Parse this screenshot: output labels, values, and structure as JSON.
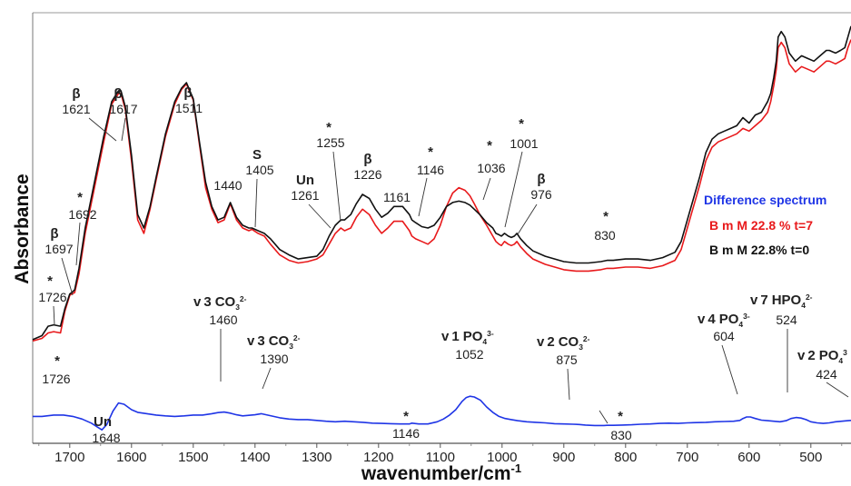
{
  "chart_data": {
    "type": "line",
    "xlabel": "wavenumber/cm",
    "xlabel_sup": "-1",
    "ylabel": "Absorbance",
    "xlim": [
      1760,
      435
    ],
    "x_reversed": true,
    "x_ticks": [
      1700,
      1600,
      1500,
      1400,
      1300,
      1200,
      1100,
      1000,
      900,
      800,
      700,
      600,
      500
    ],
    "y_ticks": false,
    "grid": false,
    "legend_position": "right",
    "legend": [
      {
        "label": "Difference spectrum",
        "color": "#1f35e6"
      },
      {
        "label": "B m M 22.8 % t=7",
        "color": "#e8191b"
      },
      {
        "label": "B m M 22.8% t=0",
        "color": "#111111"
      }
    ],
    "series": [
      {
        "name": "B m M 22.8% t=0",
        "color": "#111111",
        "x": [
          1760,
          1745,
          1735,
          1726,
          1715,
          1708,
          1700,
          1697,
          1692,
          1685,
          1675,
          1660,
          1645,
          1632,
          1621,
          1617,
          1610,
          1600,
          1590,
          1580,
          1570,
          1560,
          1545,
          1530,
          1519,
          1511,
          1500,
          1490,
          1480,
          1470,
          1460,
          1450,
          1440,
          1430,
          1420,
          1410,
          1405,
          1395,
          1385,
          1375,
          1360,
          1345,
          1330,
          1315,
          1300,
          1290,
          1280,
          1270,
          1261,
          1255,
          1245,
          1236,
          1226,
          1215,
          1205,
          1195,
          1185,
          1175,
          1161,
          1150,
          1146,
          1140,
          1130,
          1120,
          1110,
          1100,
          1090,
          1080,
          1070,
          1060,
          1052,
          1045,
          1036,
          1025,
          1015,
          1010,
          1005,
          1001,
          996,
          990,
          985,
          980,
          976,
          970,
          960,
          950,
          930,
          900,
          880,
          860,
          840,
          830,
          820,
          800,
          780,
          760,
          740,
          720,
          710,
          700,
          690,
          680,
          670,
          660,
          650,
          640,
          630,
          620,
          610,
          600,
          590,
          580,
          570,
          565,
          560,
          556,
          553,
          548,
          542,
          535,
          525,
          515,
          505,
          495,
          485,
          475,
          470,
          465,
          460,
          452,
          445,
          440,
          435
        ],
        "y": [
          0.035,
          0.05,
          0.085,
          0.09,
          0.085,
          0.15,
          0.205,
          0.21,
          0.22,
          0.3,
          0.45,
          0.62,
          0.79,
          0.92,
          0.96,
          0.96,
          0.9,
          0.72,
          0.5,
          0.45,
          0.53,
          0.64,
          0.8,
          0.92,
          0.97,
          0.99,
          0.93,
          0.77,
          0.62,
          0.53,
          0.48,
          0.49,
          0.545,
          0.49,
          0.46,
          0.45,
          0.45,
          0.44,
          0.43,
          0.41,
          0.37,
          0.35,
          0.335,
          0.34,
          0.345,
          0.37,
          0.42,
          0.46,
          0.48,
          0.48,
          0.5,
          0.54,
          0.575,
          0.56,
          0.52,
          0.49,
          0.505,
          0.53,
          0.53,
          0.5,
          0.48,
          0.47,
          0.455,
          0.45,
          0.46,
          0.49,
          0.53,
          0.545,
          0.55,
          0.545,
          0.535,
          0.52,
          0.5,
          0.47,
          0.45,
          0.43,
          0.425,
          0.42,
          0.43,
          0.42,
          0.415,
          0.42,
          0.43,
          0.41,
          0.385,
          0.365,
          0.345,
          0.325,
          0.32,
          0.32,
          0.325,
          0.33,
          0.33,
          0.335,
          0.335,
          0.33,
          0.34,
          0.36,
          0.4,
          0.48,
          0.56,
          0.64,
          0.73,
          0.78,
          0.8,
          0.81,
          0.82,
          0.83,
          0.86,
          0.84,
          0.87,
          0.88,
          0.92,
          0.95,
          1.01,
          1.07,
          1.16,
          1.18,
          1.16,
          1.1,
          1.07,
          1.09,
          1.08,
          1.07,
          1.09,
          1.11,
          1.11,
          1.105,
          1.1,
          1.11,
          1.12,
          1.16,
          1.2
        ]
      },
      {
        "name": "B m M 22.8 % t=7",
        "color": "#e8191b",
        "x": [
          1760,
          1745,
          1735,
          1726,
          1715,
          1708,
          1700,
          1697,
          1692,
          1685,
          1675,
          1660,
          1645,
          1632,
          1621,
          1617,
          1610,
          1600,
          1590,
          1580,
          1570,
          1560,
          1545,
          1530,
          1519,
          1511,
          1500,
          1490,
          1480,
          1470,
          1460,
          1450,
          1440,
          1430,
          1420,
          1410,
          1405,
          1395,
          1385,
          1375,
          1360,
          1345,
          1330,
          1315,
          1300,
          1290,
          1280,
          1270,
          1261,
          1255,
          1245,
          1236,
          1226,
          1215,
          1205,
          1195,
          1185,
          1175,
          1161,
          1150,
          1146,
          1140,
          1130,
          1120,
          1110,
          1100,
          1090,
          1080,
          1070,
          1060,
          1052,
          1045,
          1036,
          1025,
          1015,
          1010,
          1005,
          1001,
          996,
          990,
          985,
          980,
          976,
          970,
          960,
          950,
          930,
          900,
          880,
          860,
          840,
          830,
          820,
          800,
          780,
          760,
          740,
          720,
          710,
          700,
          690,
          680,
          670,
          660,
          650,
          640,
          630,
          620,
          610,
          600,
          590,
          580,
          570,
          565,
          560,
          556,
          553,
          548,
          542,
          535,
          525,
          515,
          505,
          495,
          485,
          475,
          470,
          465,
          460,
          452,
          445,
          440,
          435
        ],
        "y": [
          0.03,
          0.04,
          0.06,
          0.065,
          0.06,
          0.14,
          0.2,
          0.205,
          0.21,
          0.28,
          0.43,
          0.6,
          0.77,
          0.91,
          0.95,
          0.95,
          0.89,
          0.7,
          0.48,
          0.43,
          0.52,
          0.63,
          0.79,
          0.91,
          0.965,
          0.985,
          0.925,
          0.76,
          0.6,
          0.52,
          0.47,
          0.48,
          0.54,
          0.48,
          0.45,
          0.44,
          0.445,
          0.43,
          0.42,
          0.39,
          0.35,
          0.33,
          0.32,
          0.325,
          0.335,
          0.35,
          0.39,
          0.43,
          0.45,
          0.44,
          0.45,
          0.49,
          0.52,
          0.5,
          0.46,
          0.43,
          0.45,
          0.475,
          0.475,
          0.44,
          0.42,
          0.41,
          0.4,
          0.39,
          0.41,
          0.46,
          0.53,
          0.58,
          0.6,
          0.59,
          0.57,
          0.54,
          0.5,
          0.46,
          0.42,
          0.4,
          0.39,
          0.385,
          0.4,
          0.39,
          0.385,
          0.39,
          0.4,
          0.38,
          0.355,
          0.335,
          0.315,
          0.295,
          0.29,
          0.29,
          0.295,
          0.3,
          0.3,
          0.305,
          0.305,
          0.3,
          0.31,
          0.33,
          0.37,
          0.45,
          0.53,
          0.61,
          0.7,
          0.75,
          0.77,
          0.78,
          0.79,
          0.8,
          0.82,
          0.81,
          0.83,
          0.85,
          0.88,
          0.92,
          0.98,
          1.04,
          1.12,
          1.14,
          1.12,
          1.06,
          1.03,
          1.05,
          1.04,
          1.03,
          1.05,
          1.07,
          1.07,
          1.065,
          1.06,
          1.07,
          1.08,
          1.12,
          1.15
        ]
      },
      {
        "name": "Difference spectrum",
        "color": "#1f35e6",
        "x": [
          1760,
          1745,
          1726,
          1710,
          1695,
          1680,
          1665,
          1655,
          1648,
          1640,
          1630,
          1621,
          1612,
          1600,
          1590,
          1575,
          1560,
          1545,
          1530,
          1515,
          1500,
          1485,
          1470,
          1460,
          1450,
          1440,
          1430,
          1420,
          1410,
          1400,
          1390,
          1380,
          1370,
          1360,
          1345,
          1330,
          1315,
          1300,
          1285,
          1270,
          1255,
          1240,
          1225,
          1210,
          1195,
          1180,
          1165,
          1150,
          1146,
          1135,
          1120,
          1105,
          1095,
          1085,
          1075,
          1065,
          1058,
          1052,
          1045,
          1035,
          1025,
          1015,
          1005,
          995,
          985,
          975,
          960,
          945,
          930,
          915,
          900,
          885,
          875,
          865,
          850,
          835,
          830,
          820,
          805,
          790,
          775,
          760,
          745,
          730,
          715,
          700,
          685,
          670,
          655,
          640,
          625,
          615,
          610,
          604,
          598,
          590,
          580,
          570,
          560,
          550,
          540,
          532,
          524,
          516,
          508,
          500,
          490,
          480,
          470,
          460,
          450,
          440,
          435
        ],
        "y": [
          -0.25,
          -0.25,
          -0.245,
          -0.245,
          -0.25,
          -0.26,
          -0.275,
          -0.29,
          -0.3,
          -0.28,
          -0.23,
          -0.2,
          -0.205,
          -0.225,
          -0.235,
          -0.24,
          -0.245,
          -0.248,
          -0.25,
          -0.248,
          -0.245,
          -0.245,
          -0.24,
          -0.236,
          -0.234,
          -0.238,
          -0.244,
          -0.248,
          -0.246,
          -0.244,
          -0.24,
          -0.245,
          -0.25,
          -0.255,
          -0.26,
          -0.262,
          -0.262,
          -0.265,
          -0.268,
          -0.27,
          -0.268,
          -0.27,
          -0.272,
          -0.275,
          -0.276,
          -0.277,
          -0.278,
          -0.278,
          -0.275,
          -0.278,
          -0.278,
          -0.27,
          -0.26,
          -0.245,
          -0.225,
          -0.195,
          -0.18,
          -0.175,
          -0.178,
          -0.19,
          -0.215,
          -0.235,
          -0.25,
          -0.258,
          -0.262,
          -0.266,
          -0.27,
          -0.272,
          -0.274,
          -0.277,
          -0.278,
          -0.279,
          -0.28,
          -0.282,
          -0.284,
          -0.284,
          -0.283,
          -0.283,
          -0.282,
          -0.281,
          -0.279,
          -0.278,
          -0.276,
          -0.275,
          -0.276,
          -0.274,
          -0.273,
          -0.272,
          -0.27,
          -0.269,
          -0.268,
          -0.265,
          -0.258,
          -0.252,
          -0.252,
          -0.258,
          -0.264,
          -0.266,
          -0.268,
          -0.27,
          -0.266,
          -0.258,
          -0.254,
          -0.256,
          -0.262,
          -0.27,
          -0.274,
          -0.276,
          -0.274,
          -0.27,
          -0.268,
          -0.266,
          -0.265
        ]
      }
    ],
    "annotations": [
      {
        "marker": "β",
        "label": "1621",
        "x": 1621
      },
      {
        "marker": "β",
        "label": "1617",
        "x": 1617
      },
      {
        "marker": "β",
        "label": "1511",
        "x": 1511
      },
      {
        "marker": "S",
        "label": "1405",
        "x": 1405
      },
      {
        "marker": "",
        "label": "1440",
        "x": 1440
      },
      {
        "marker": "Un",
        "label": "1261",
        "x": 1261
      },
      {
        "marker": "*",
        "label": "1255",
        "x": 1255
      },
      {
        "marker": "β",
        "label": "1226",
        "x": 1226
      },
      {
        "marker": "",
        "label": "1161",
        "x": 1161
      },
      {
        "marker": "*",
        "label": "1146",
        "x": 1146
      },
      {
        "marker": "*",
        "label": "1036",
        "x": 1036
      },
      {
        "marker": "*",
        "label": "1001",
        "x": 1001
      },
      {
        "marker": "β",
        "label": "976",
        "x": 976
      },
      {
        "marker": "*",
        "label": "830",
        "x": 830
      },
      {
        "marker": "*",
        "label": "1692",
        "x": 1692
      },
      {
        "marker": "β",
        "label": "1697",
        "x": 1697
      },
      {
        "marker": "*",
        "label": "1726",
        "x": 1726
      },
      {
        "marker": "*",
        "label": "1726",
        "x": 1726
      },
      {
        "marker": "Un",
        "label": "1648",
        "x": 1648
      },
      {
        "marker": "v 3 CO3 2-",
        "label": "1460",
        "x": 1460
      },
      {
        "marker": "v 3 CO3 2-",
        "label": "1390",
        "x": 1390
      },
      {
        "marker": "*",
        "label": "1146",
        "x": 1146
      },
      {
        "marker": "v 1 PO4 3-",
        "label": "1052",
        "x": 1052
      },
      {
        "marker": "v 2 CO3 2-",
        "label": "875",
        "x": 875
      },
      {
        "marker": "*",
        "label": "830",
        "x": 830
      },
      {
        "marker": "v 4 PO4 3-",
        "label": "604",
        "x": 604
      },
      {
        "marker": "v 7 HPO4 2-",
        "label": "524",
        "x": 524
      },
      {
        "marker": "v 2 PO4 3",
        "label": "424",
        "x": 424
      }
    ]
  }
}
